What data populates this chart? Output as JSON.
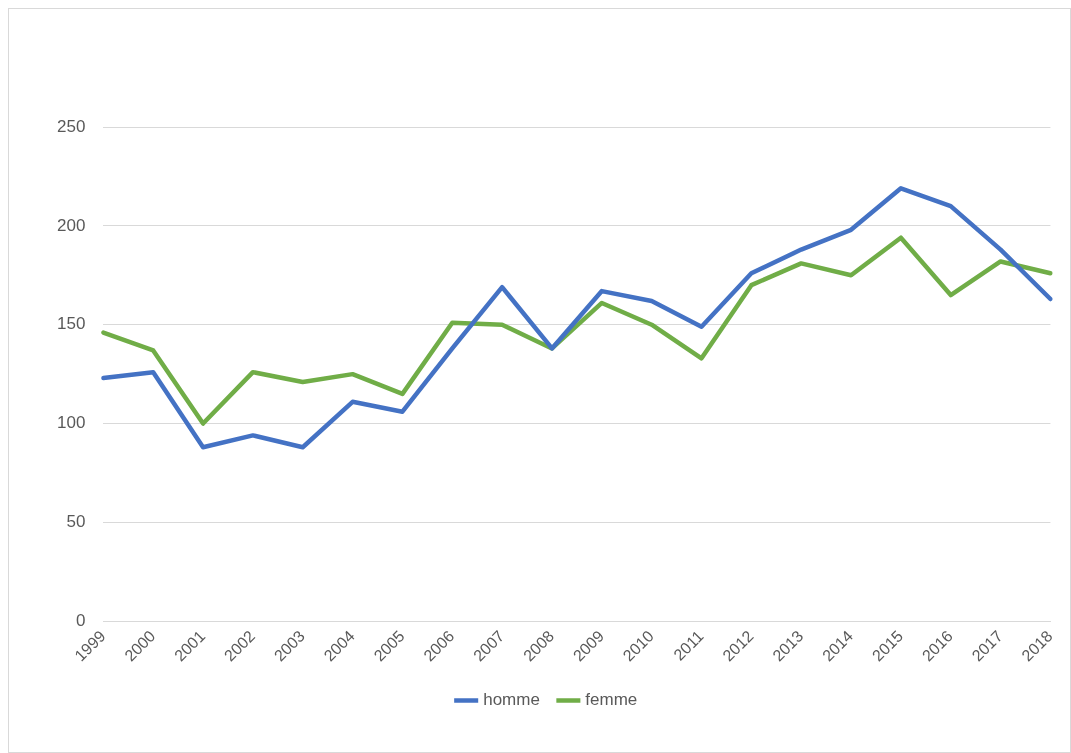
{
  "chart_data": {
    "type": "line",
    "categories": [
      "1999",
      "2000",
      "2001",
      "2002",
      "2003",
      "2004",
      "2005",
      "2006",
      "2007",
      "2008",
      "2009",
      "2010",
      "2011",
      "2012",
      "2013",
      "2014",
      "2015",
      "2016",
      "2017",
      "2018"
    ],
    "series": [
      {
        "name": "homme",
        "color": "#4472c4",
        "values": [
          123,
          126,
          88,
          94,
          88,
          111,
          106,
          138,
          169,
          138,
          167,
          162,
          149,
          176,
          188,
          198,
          219,
          210,
          188,
          163
        ]
      },
      {
        "name": "femme",
        "color": "#70ad47",
        "values": [
          146,
          137,
          100,
          126,
          121,
          125,
          115,
          151,
          150,
          138,
          161,
          150,
          133,
          170,
          181,
          175,
          194,
          165,
          182,
          176
        ]
      }
    ],
    "ylim": [
      0,
      250
    ],
    "yticks": [
      0,
      50,
      100,
      150,
      200,
      250
    ],
    "grid": "y",
    "legend": "bottom",
    "marker": "none",
    "line_style": "solid"
  }
}
